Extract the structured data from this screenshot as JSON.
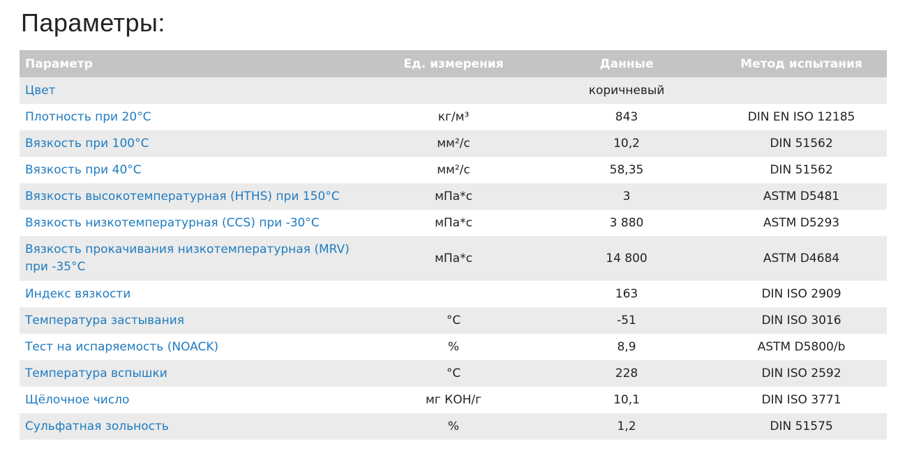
{
  "title": "Параметры:",
  "headers": [
    "Параметр",
    "Ед. измерения",
    "Данные",
    "Метод испытания"
  ],
  "rows": [
    [
      "Цвет",
      "",
      "коричневый",
      ""
    ],
    [
      "Плотность при 20°С",
      "кг/м³",
      "843",
      "DIN EN ISO 12185"
    ],
    [
      "Вязкость при 100°С",
      "мм²/с",
      "10,2",
      "DIN 51562"
    ],
    [
      "Вязкость при 40°С",
      "мм²/с",
      "58,35",
      "DIN 51562"
    ],
    [
      "Вязкость высокотемпературная (HTHS) при 150°С",
      "мПа*с",
      "3",
      "ASTM D5481"
    ],
    [
      "Вязкость низкотемпературная (CCS) при -30°С",
      "мПа*с",
      "3 880",
      "ASTM D5293"
    ],
    [
      "Вязкость прокачивания низкотемпературная (MRV) при -35°С",
      "мПа*с",
      "14 800",
      "ASTM D4684"
    ],
    [
      "Индекс вязкости",
      "",
      "163",
      "DIN ISO 2909"
    ],
    [
      "Температура застывания",
      "°С",
      "-51",
      "DIN ISO 3016"
    ],
    [
      "Тест на испаряемость (NOACK)",
      "%",
      "8,9",
      "ASTM D5800/b"
    ],
    [
      "Температура вспышки",
      "°С",
      "228",
      "DIN ISO 2592"
    ],
    [
      "Щёлочное число",
      "мг КОН/г",
      "10,1",
      "DIN ISO 3771"
    ],
    [
      "Сульфатная зольность",
      "%",
      "1,2",
      "DIN 51575"
    ]
  ],
  "colors": {
    "header_bg": "#c4c4c4",
    "row_alt": "#ebebeb",
    "link": "#1f7bc0"
  }
}
